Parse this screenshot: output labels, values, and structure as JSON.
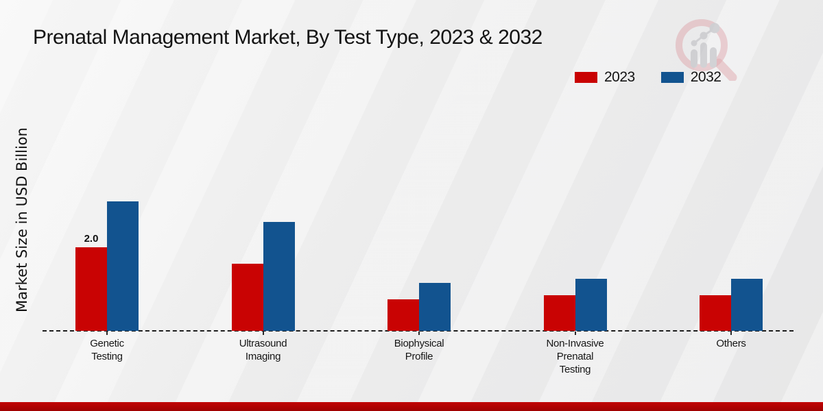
{
  "title": "Prenatal Management Market, By Test Type, 2023 & 2032",
  "ylabel": "Market Size in USD Billion",
  "colors": {
    "bar_2023_red": "#c90303",
    "bar_2032_blue": "#12538f",
    "footer_red_top": "#c10404",
    "footer_red_bottom": "#a00101",
    "baseline": "#1c1c1c",
    "watermark_ring": "#c9626c",
    "watermark_bars": "#b9b9bf"
  },
  "legend": {
    "position": "top-right",
    "items": [
      {
        "label": "2023",
        "color": "#c90303"
      },
      {
        "label": "2032",
        "color": "#12538f"
      }
    ]
  },
  "watermark_name": "magnifier-bar-chart-logo",
  "chart_data": {
    "type": "bar",
    "title": "Prenatal Management Market, By Test Type, 2023 & 2032",
    "xlabel": "",
    "ylabel": "Market Size in USD Billion",
    "categories": [
      "Genetic Testing",
      "Ultrasound Imaging",
      "Biophysical Profile",
      "Non-Invasive Prenatal Testing",
      "Others"
    ],
    "category_lines": [
      [
        "Genetic",
        "Testing"
      ],
      [
        "Ultrasound",
        "Imaging"
      ],
      [
        "Biophysical",
        "Profile"
      ],
      [
        "Non-Invasive",
        "Prenatal",
        "Testing"
      ],
      [
        "Others"
      ]
    ],
    "series": [
      {
        "name": "2023",
        "color": "#c90303",
        "values": [
          2.0,
          1.6,
          0.75,
          0.85,
          0.85
        ]
      },
      {
        "name": "2032",
        "color": "#12538f",
        "values": [
          3.1,
          2.6,
          1.15,
          1.25,
          1.25
        ]
      }
    ],
    "bar_labels": [
      {
        "series": "2023",
        "category_index": 0,
        "text": "2.0"
      }
    ],
    "ylim": [
      0,
      3.5
    ],
    "grid": false,
    "y_axis_ticks_visible": false,
    "baseline_style": "dashed",
    "legend_position": "top-right"
  }
}
